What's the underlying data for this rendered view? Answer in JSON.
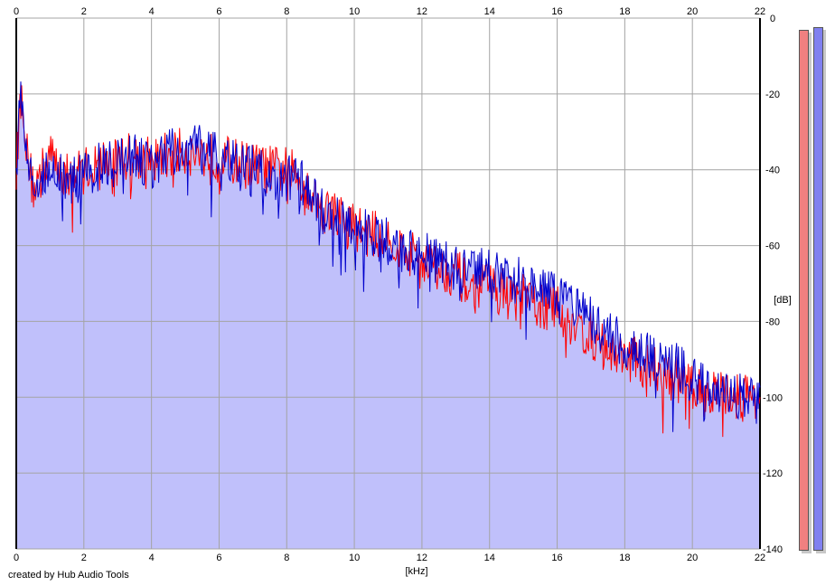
{
  "credit": "created by Hub Audio Tools",
  "colors": {
    "fill": "#c0c0fb",
    "left_channel": "#ff0000",
    "right_channel": "#0000cc",
    "grid": "#a4a4a4",
    "meter_left": "#f08080",
    "meter_right": "#8080f0"
  },
  "chart_data": {
    "type": "line",
    "xlabel": "[kHz]",
    "ylabel": "[dB]",
    "xlim": [
      0,
      22
    ],
    "ylim": [
      -140,
      0
    ],
    "x_ticks": [
      0,
      2,
      4,
      6,
      8,
      10,
      12,
      14,
      16,
      18,
      20,
      22
    ],
    "y_ticks": [
      0,
      -20,
      -40,
      -60,
      -80,
      -100,
      -120,
      -140
    ],
    "x_ticks_top_and_bottom": true,
    "y_axis_side": "right",
    "grid": true,
    "series": [
      {
        "channel": "left",
        "color": "#ff0000",
        "x": [
          0,
          0.1,
          0.2,
          0.3,
          0.5,
          1,
          1.5,
          2,
          2.5,
          3,
          3.5,
          4,
          4.5,
          5,
          5.5,
          6,
          6.5,
          7,
          7.5,
          8,
          8.5,
          9,
          9.5,
          10,
          10.5,
          11,
          11.5,
          12,
          12.5,
          13,
          13.5,
          14,
          14.5,
          15,
          15.5,
          16,
          16.5,
          17,
          17.5,
          18,
          18.5,
          19,
          19.5,
          20,
          20.5,
          21,
          21.5,
          22
        ],
        "y": [
          -40,
          -24,
          -20,
          -35,
          -45,
          -36,
          -42,
          -40,
          -38,
          -37,
          -36,
          -38,
          -36,
          -35,
          -36,
          -37,
          -38,
          -39,
          -40,
          -40,
          -43,
          -50,
          -52,
          -55,
          -57,
          -58,
          -62,
          -63,
          -66,
          -67,
          -72,
          -70,
          -73,
          -74,
          -76,
          -77,
          -81,
          -84,
          -88,
          -89,
          -91,
          -93,
          -95,
          -98,
          -99,
          -99,
          -100,
          -99
        ]
      },
      {
        "channel": "right",
        "color": "#0000cc",
        "x": [
          0,
          0.1,
          0.2,
          0.3,
          0.5,
          1,
          1.5,
          2,
          2.5,
          3,
          3.5,
          4,
          4.5,
          5,
          5.5,
          6,
          6.5,
          7,
          7.5,
          8,
          8.5,
          9,
          9.5,
          10,
          10.5,
          11,
          11.5,
          12,
          12.5,
          13,
          13.5,
          14,
          14.5,
          15,
          15.5,
          16,
          16.5,
          17,
          17.5,
          18,
          18.5,
          19,
          19.5,
          20,
          20.5,
          21,
          21.5,
          22
        ],
        "y": [
          -40,
          -23,
          -22,
          -34,
          -47,
          -38,
          -43,
          -42,
          -39,
          -38,
          -37,
          -39,
          -36,
          -33,
          -35,
          -37,
          -39,
          -40,
          -42,
          -42,
          -44,
          -51,
          -53,
          -56,
          -57,
          -59,
          -61,
          -62,
          -64,
          -66,
          -68,
          -66,
          -68,
          -70,
          -72,
          -74,
          -77,
          -80,
          -84,
          -86,
          -88,
          -90,
          -92,
          -95,
          -97,
          -98,
          -100,
          -102
        ]
      }
    ]
  },
  "meters": {
    "left_level_db": -3,
    "right_level_db": -2.5
  }
}
